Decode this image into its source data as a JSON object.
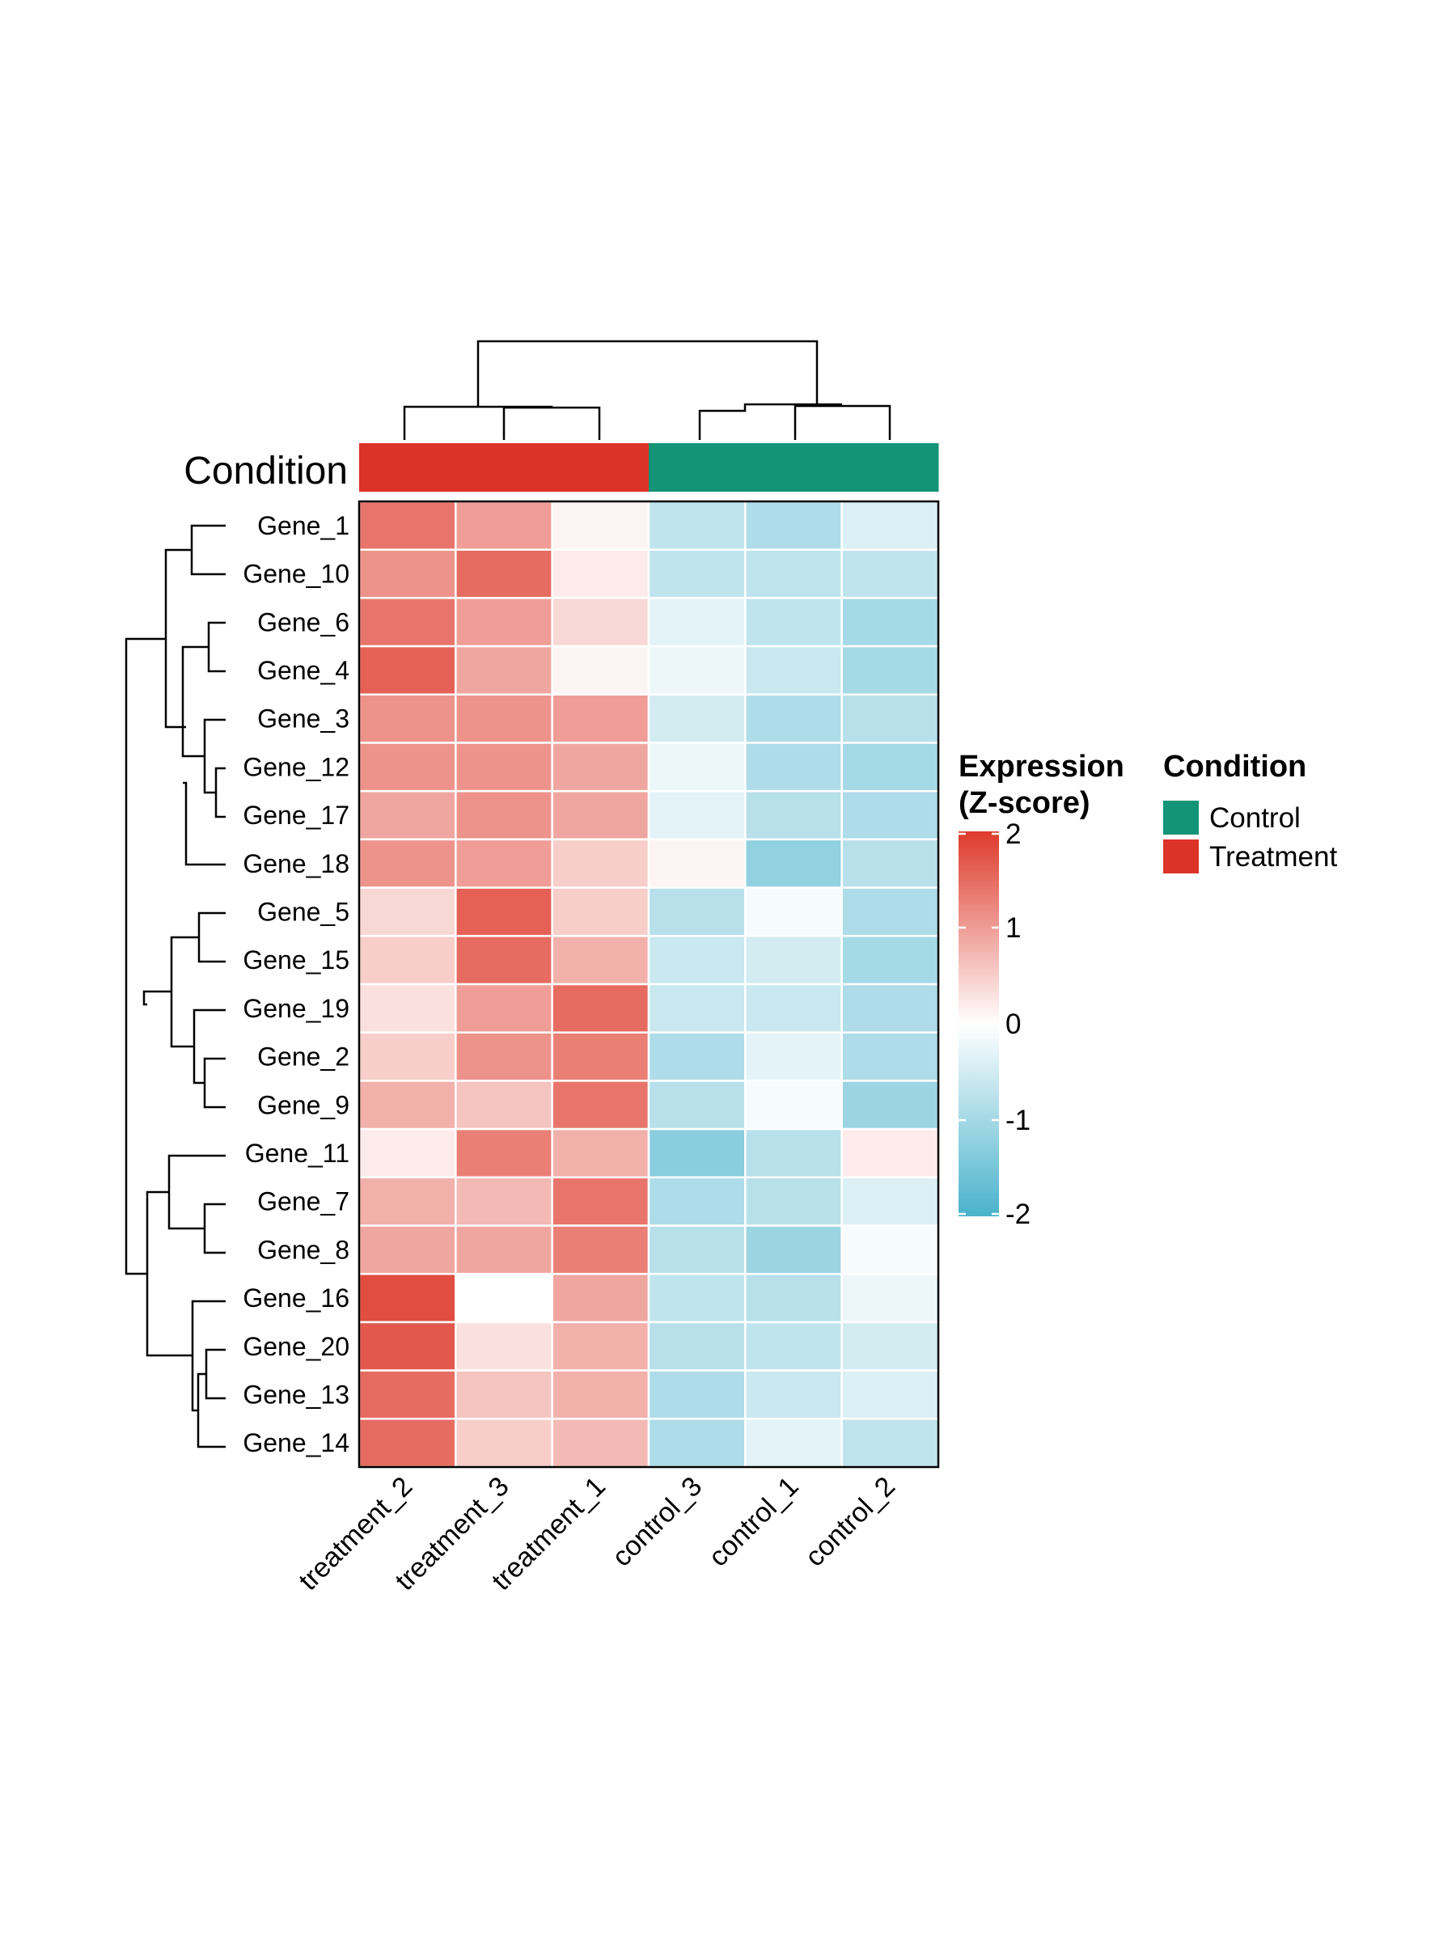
{
  "chart_data": {
    "type": "heatmap",
    "title": "",
    "columns": [
      "treatment_2",
      "treatment_3",
      "treatment_1",
      "control_3",
      "control_1",
      "control_2"
    ],
    "rows": [
      "Gene_1",
      "Gene_10",
      "Gene_6",
      "Gene_4",
      "Gene_3",
      "Gene_12",
      "Gene_17",
      "Gene_18",
      "Gene_5",
      "Gene_15",
      "Gene_19",
      "Gene_2",
      "Gene_9",
      "Gene_11",
      "Gene_7",
      "Gene_8",
      "Gene_16",
      "Gene_20",
      "Gene_13",
      "Gene_14"
    ],
    "values": [
      [
        1.4,
        1.0,
        0.1,
        -0.7,
        -0.9,
        -0.4
      ],
      [
        1.1,
        1.5,
        0.2,
        -0.7,
        -0.7,
        -0.7
      ],
      [
        1.4,
        1.0,
        0.4,
        -0.3,
        -0.7,
        -1.0
      ],
      [
        1.6,
        0.9,
        0.1,
        -0.2,
        -0.6,
        -1.0
      ],
      [
        1.1,
        1.1,
        1.0,
        -0.5,
        -0.9,
        -0.8
      ],
      [
        1.1,
        1.1,
        0.9,
        -0.2,
        -0.9,
        -1.0
      ],
      [
        0.9,
        1.1,
        0.9,
        -0.3,
        -0.8,
        -0.9
      ],
      [
        1.1,
        1.0,
        0.5,
        0.1,
        -1.2,
        -0.8
      ],
      [
        0.4,
        1.6,
        0.5,
        -0.8,
        -0.1,
        -0.9
      ],
      [
        0.5,
        1.5,
        0.8,
        -0.6,
        -0.5,
        -1.0
      ],
      [
        0.3,
        1.0,
        1.5,
        -0.6,
        -0.6,
        -0.9
      ],
      [
        0.5,
        1.1,
        1.3,
        -0.9,
        -0.3,
        -0.9
      ],
      [
        0.8,
        0.6,
        1.4,
        -0.8,
        -0.1,
        -1.1
      ],
      [
        0.2,
        1.3,
        0.8,
        -1.3,
        -0.8,
        0.2
      ],
      [
        0.8,
        0.7,
        1.4,
        -0.9,
        -0.8,
        -0.4
      ],
      [
        0.9,
        0.9,
        1.3,
        -0.8,
        -1.1,
        -0.1
      ],
      [
        1.8,
        0.0,
        0.9,
        -0.7,
        -0.8,
        -0.2
      ],
      [
        1.7,
        0.3,
        0.8,
        -0.8,
        -0.7,
        -0.5
      ],
      [
        1.5,
        0.6,
        0.8,
        -0.9,
        -0.6,
        -0.4
      ],
      [
        1.5,
        0.5,
        0.7,
        -0.9,
        -0.3,
        -0.7
      ]
    ],
    "color_scale": {
      "low": "#4AB2CC",
      "mid": "#FFFFFF",
      "high": "#DE3A2C",
      "min": -2,
      "max": 2,
      "ticks": [
        2,
        1,
        0,
        -1,
        -2
      ]
    },
    "annotation": {
      "label": "Condition",
      "values": [
        "Treatment",
        "Treatment",
        "Treatment",
        "Control",
        "Control",
        "Control"
      ]
    },
    "legends": [
      {
        "title_lines": [
          "Expression",
          "(Z-score)"
        ],
        "type": "colorbar",
        "tick_labels": [
          "2",
          "1",
          "0",
          "-1",
          "-2"
        ]
      },
      {
        "title": "Condition",
        "type": "categorical",
        "entries": [
          {
            "label": "Control",
            "color": "#149476"
          },
          {
            "label": "Treatment",
            "color": "#DC3328"
          }
        ]
      }
    ],
    "grid": false,
    "legend_position": "right"
  }
}
